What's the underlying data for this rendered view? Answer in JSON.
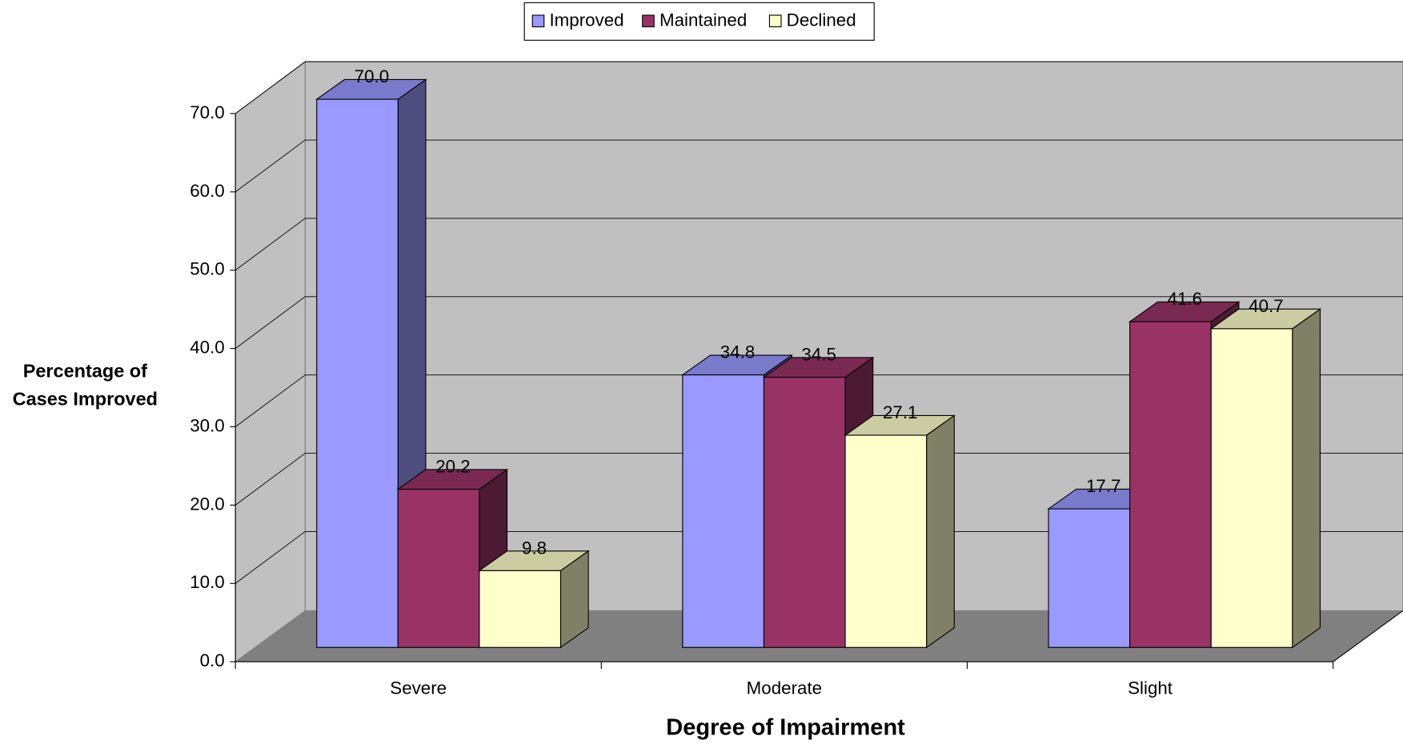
{
  "chart_data": {
    "type": "bar3d",
    "x_label": "Degree of Impairment",
    "y_label": "Percentage of Cases Improved",
    "categories": [
      "Severe",
      "Moderate",
      "Slight"
    ],
    "series": [
      {
        "name": "Improved",
        "color": "#9999ff",
        "values": [
          70.0,
          34.8,
          17.7
        ],
        "value_labels": [
          "70.0",
          "34.8",
          "17.7"
        ]
      },
      {
        "name": "Maintained",
        "color": "#993366",
        "values": [
          20.2,
          34.5,
          41.6
        ],
        "value_labels": [
          "20.2",
          "34.5",
          "41.6"
        ]
      },
      {
        "name": "Declined",
        "color": "#ffffcc",
        "values": [
          9.8,
          27.1,
          40.7
        ],
        "value_labels": [
          "9.8",
          "27.1",
          "40.7"
        ]
      }
    ],
    "ylim": [
      0,
      70
    ],
    "yticks": [
      {
        "value": 0,
        "label": "0.0"
      },
      {
        "value": 10,
        "label": "10.0"
      },
      {
        "value": 20,
        "label": "20.0"
      },
      {
        "value": 30,
        "label": "30.0"
      },
      {
        "value": 40,
        "label": "40.0"
      },
      {
        "value": 50,
        "label": "50.0"
      },
      {
        "value": 60,
        "label": "60.0"
      },
      {
        "value": 70,
        "label": "70.0"
      }
    ],
    "grid": true,
    "legend": "top"
  }
}
